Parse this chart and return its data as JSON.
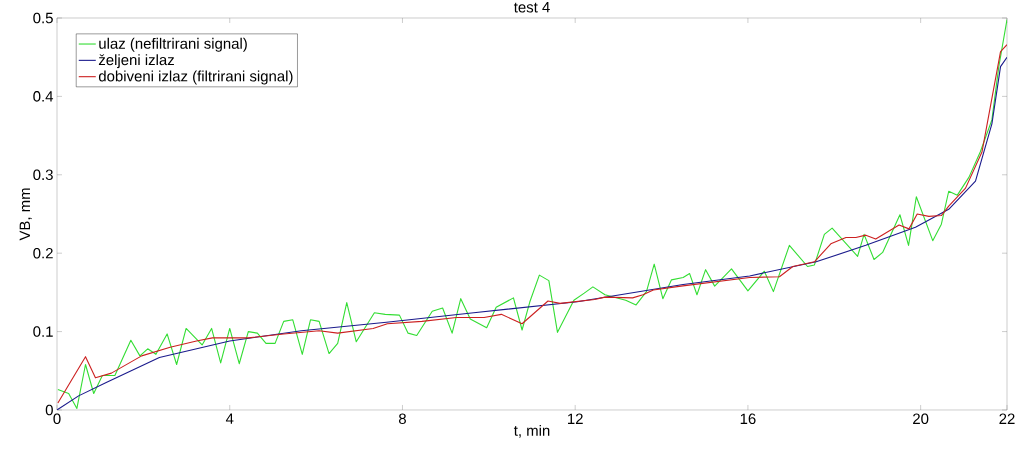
{
  "chart_data": {
    "type": "line",
    "title": "test 4",
    "xlabel": "t, min",
    "ylabel": "VB, mm",
    "xlim": [
      0,
      22
    ],
    "ylim": [
      0,
      0.5
    ],
    "xticks": [
      0,
      4,
      8,
      12,
      16,
      20,
      22
    ],
    "yticks": [
      0,
      0.1,
      0.2,
      0.3,
      0.4,
      0.5
    ],
    "legend": "top left",
    "series": [
      {
        "name": "ulaz (nefiltrirani signal)",
        "color": "#33dd33",
        "x": [
          0.02,
          0.27,
          0.46,
          0.66,
          0.85,
          1.05,
          1.34,
          1.71,
          1.92,
          2.1,
          2.29,
          2.55,
          2.77,
          2.99,
          3.36,
          3.58,
          3.79,
          4.0,
          4.22,
          4.43,
          4.64,
          4.84,
          5.05,
          5.25,
          5.46,
          5.68,
          5.87,
          6.07,
          6.3,
          6.5,
          6.71,
          6.93,
          7.35,
          7.6,
          7.93,
          8.13,
          8.33,
          8.69,
          8.93,
          9.15,
          9.35,
          9.57,
          9.95,
          10.17,
          10.57,
          10.77,
          10.95,
          11.17,
          11.39,
          11.59,
          11.97,
          12.21,
          12.41,
          12.69,
          13.17,
          13.41,
          13.65,
          13.83,
          14.03,
          14.23,
          14.5,
          14.65,
          14.82,
          15.02,
          15.23,
          15.62,
          16.0,
          16.38,
          16.59,
          16.96,
          17.38,
          17.54,
          17.77,
          17.95,
          18.54,
          18.69,
          18.92,
          19.12,
          19.52,
          19.72,
          19.9,
          20.28,
          20.48,
          20.65,
          20.85,
          21.12,
          21.38,
          21.65,
          21.81,
          22.0
        ],
        "values": [
          0.026,
          0.021,
          0.002,
          0.058,
          0.021,
          0.044,
          0.044,
          0.089,
          0.069,
          0.078,
          0.071,
          0.097,
          0.058,
          0.104,
          0.083,
          0.104,
          0.06,
          0.104,
          0.059,
          0.1,
          0.098,
          0.085,
          0.085,
          0.113,
          0.115,
          0.071,
          0.115,
          0.113,
          0.072,
          0.085,
          0.137,
          0.087,
          0.124,
          0.122,
          0.121,
          0.098,
          0.095,
          0.126,
          0.13,
          0.098,
          0.142,
          0.116,
          0.105,
          0.131,
          0.143,
          0.102,
          0.138,
          0.172,
          0.165,
          0.099,
          0.14,
          0.149,
          0.157,
          0.147,
          0.14,
          0.134,
          0.151,
          0.186,
          0.142,
          0.166,
          0.169,
          0.174,
          0.147,
          0.179,
          0.158,
          0.18,
          0.152,
          0.177,
          0.151,
          0.21,
          0.183,
          0.185,
          0.224,
          0.232,
          0.196,
          0.224,
          0.192,
          0.201,
          0.249,
          0.21,
          0.272,
          0.216,
          0.237,
          0.279,
          0.274,
          0.297,
          0.329,
          0.37,
          0.438,
          0.498
        ]
      },
      {
        "name": "željeni izlaz",
        "color": "#1a1a8c",
        "x": [
          0,
          0.5,
          1.14,
          2.37,
          4.0,
          5.66,
          7.63,
          9.65,
          12.05,
          14.5,
          16.04,
          17.58,
          18.73,
          19.88,
          20.65,
          21.27,
          21.65,
          21.85,
          22.0
        ],
        "values": [
          0,
          0.018,
          0.035,
          0.067,
          0.088,
          0.101,
          0.112,
          0.124,
          0.138,
          0.16,
          0.171,
          0.189,
          0.21,
          0.233,
          0.256,
          0.292,
          0.365,
          0.438,
          0.45
        ]
      },
      {
        "name": "dobiveni izlaz (filtrirani signal)",
        "color": "#cc2020",
        "x": [
          0.02,
          0.66,
          0.89,
          1.26,
          1.96,
          2.62,
          3.23,
          3.6,
          4.43,
          5.25,
          6.07,
          6.5,
          7.32,
          7.65,
          8.45,
          9.25,
          9.89,
          10.29,
          10.77,
          11.37,
          11.65,
          12.45,
          12.69,
          13.33,
          13.57,
          13.81,
          14.45,
          16.04,
          16.73,
          17.04,
          17.54,
          17.92,
          18.27,
          18.5,
          18.73,
          18.96,
          19.5,
          19.73,
          19.92,
          20.19,
          20.48,
          20.65,
          21.04,
          21.42,
          21.85,
          22.0
        ],
        "values": [
          0.009,
          0.068,
          0.041,
          0.047,
          0.069,
          0.08,
          0.088,
          0.092,
          0.092,
          0.097,
          0.101,
          0.098,
          0.104,
          0.11,
          0.113,
          0.118,
          0.118,
          0.122,
          0.11,
          0.139,
          0.136,
          0.141,
          0.144,
          0.143,
          0.147,
          0.153,
          0.158,
          0.169,
          0.17,
          0.183,
          0.189,
          0.212,
          0.22,
          0.22,
          0.223,
          0.218,
          0.236,
          0.231,
          0.25,
          0.247,
          0.248,
          0.26,
          0.283,
          0.329,
          0.457,
          0.466
        ]
      }
    ]
  }
}
